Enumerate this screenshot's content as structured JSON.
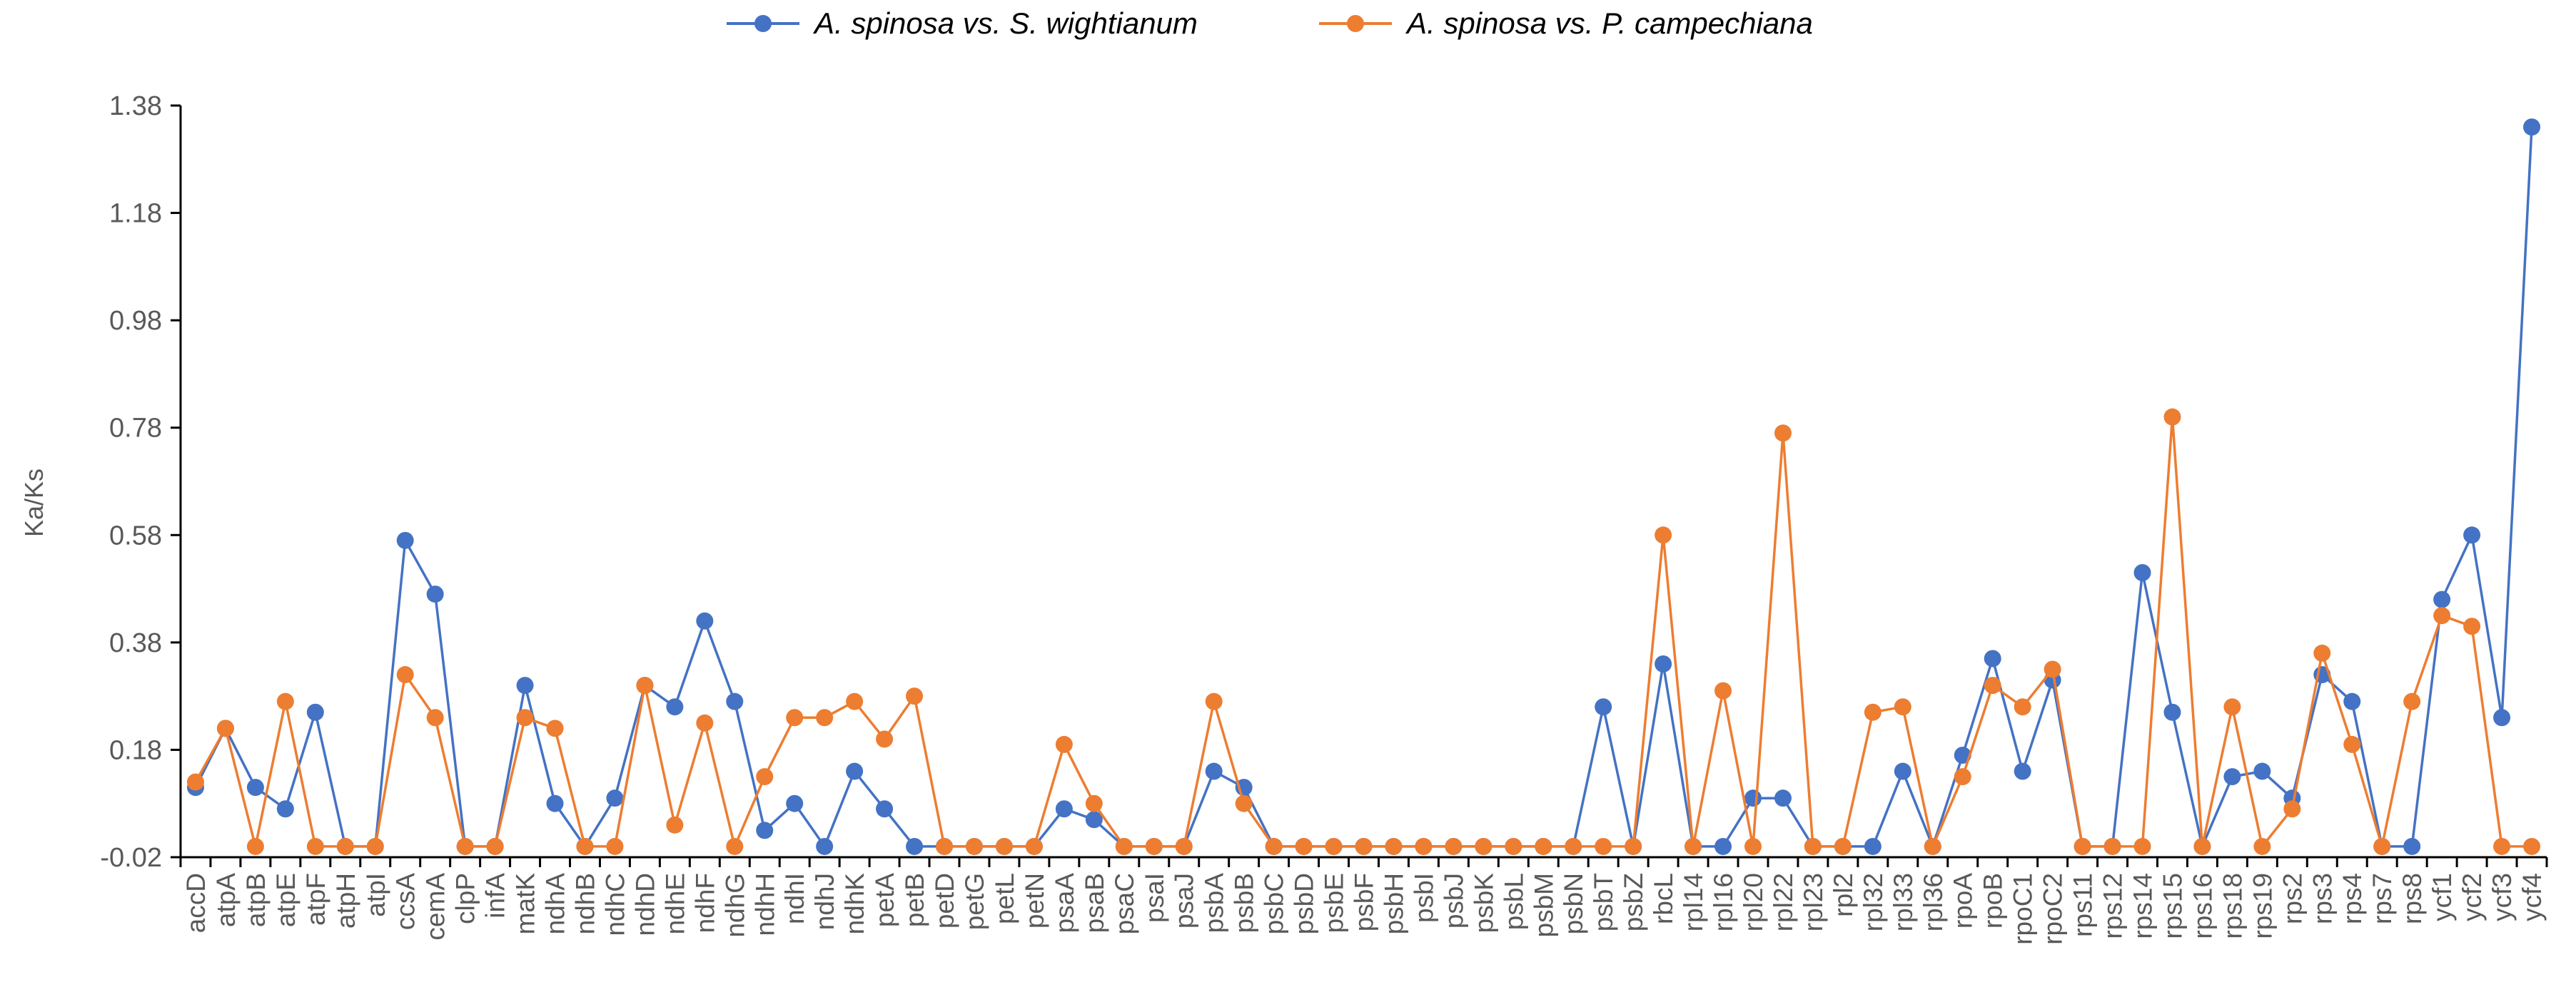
{
  "chart_data": {
    "type": "line",
    "title": "",
    "xlabel": "",
    "ylabel": "Ka/Ks",
    "ylim": [
      -0.02,
      1.38
    ],
    "yticks": [
      "-0.02",
      "0.18",
      "0.38",
      "0.58",
      "0.78",
      "0.98",
      "1.18",
      "1.38"
    ],
    "grid": false,
    "legend_position": "top-center",
    "categories": [
      "accD",
      "atpA",
      "atpB",
      "atpE",
      "atpF",
      "atpH",
      "atpI",
      "ccsA",
      "cemA",
      "clpP",
      "infA",
      "matK",
      "ndhA",
      "ndhB",
      "ndhC",
      "ndhD",
      "ndhE",
      "ndhF",
      "ndhG",
      "ndhH",
      "ndhI",
      "ndhJ",
      "ndhK",
      "petA",
      "petB",
      "petD",
      "petG",
      "petL",
      "petN",
      "psaA",
      "psaB",
      "psaC",
      "psaI",
      "psaJ",
      "psbA",
      "psbB",
      "psbC",
      "psbD",
      "psbE",
      "psbF",
      "psbH",
      "psbI",
      "psbJ",
      "psbK",
      "psbL",
      "psbM",
      "psbN",
      "psbT",
      "psbZ",
      "rbcL",
      "rpl14",
      "rpl16",
      "rpl20",
      "rpl22",
      "rpl23",
      "rpl2",
      "rpl32",
      "rpl33",
      "rpl36",
      "rpoA",
      "rpoB",
      "rpoC1",
      "rpoC2",
      "rps11",
      "rps12",
      "rps14",
      "rps15",
      "rps16",
      "rps18",
      "rps19",
      "rps2",
      "rps3",
      "rps4",
      "rps7",
      "rps8",
      "ycf1",
      "ycf2",
      "ycf3",
      "ycf4"
    ],
    "series": [
      {
        "name": "A. spinosa vs. S. wightianum",
        "color": "#4472C4",
        "values": [
          0.11,
          0.22,
          0.11,
          0.07,
          0.25,
          0.0,
          0.0,
          0.57,
          0.47,
          0.0,
          0.0,
          0.3,
          0.08,
          0.0,
          0.09,
          0.3,
          0.26,
          0.42,
          0.27,
          0.03,
          0.08,
          0.0,
          0.14,
          0.07,
          0.0,
          0.0,
          0.0,
          0.0,
          0.0,
          0.07,
          0.05,
          0.0,
          0.0,
          0.0,
          0.14,
          0.11,
          0.0,
          0.0,
          0.0,
          0.0,
          0.0,
          0.0,
          0.0,
          0.0,
          0.0,
          0.0,
          0.0,
          0.26,
          0.0,
          0.34,
          0.0,
          0.0,
          0.09,
          0.09,
          0.0,
          0.0,
          0.0,
          0.14,
          0.0,
          0.17,
          0.35,
          0.14,
          0.31,
          0.0,
          0.0,
          0.51,
          0.25,
          0.0,
          0.13,
          0.14,
          0.09,
          0.32,
          0.27,
          0.0,
          0.0,
          0.46,
          0.58,
          0.24,
          1.34
        ]
      },
      {
        "name": "A. spinosa vs. P. campechiana",
        "color": "#ED7D31",
        "values": [
          0.12,
          0.22,
          0.0,
          0.27,
          0.0,
          0.0,
          0.0,
          0.32,
          0.24,
          0.0,
          0.0,
          0.24,
          0.22,
          0.0,
          0.0,
          0.3,
          0.04,
          0.23,
          0.0,
          0.13,
          0.24,
          0.24,
          0.27,
          0.2,
          0.28,
          0.0,
          0.0,
          0.0,
          0.0,
          0.19,
          0.08,
          0.0,
          0.0,
          0.0,
          0.27,
          0.08,
          0.0,
          0.0,
          0.0,
          0.0,
          0.0,
          0.0,
          0.0,
          0.0,
          0.0,
          0.0,
          0.0,
          0.0,
          0.0,
          0.58,
          0.0,
          0.29,
          0.0,
          0.77,
          0.0,
          0.0,
          0.25,
          0.26,
          0.0,
          0.13,
          0.3,
          0.26,
          0.33,
          0.0,
          0.0,
          0.0,
          0.8,
          0.0,
          0.26,
          0.0,
          0.07,
          0.36,
          0.19,
          0.0,
          0.27,
          0.43,
          0.41,
          0.0,
          0.0
        ]
      }
    ]
  }
}
